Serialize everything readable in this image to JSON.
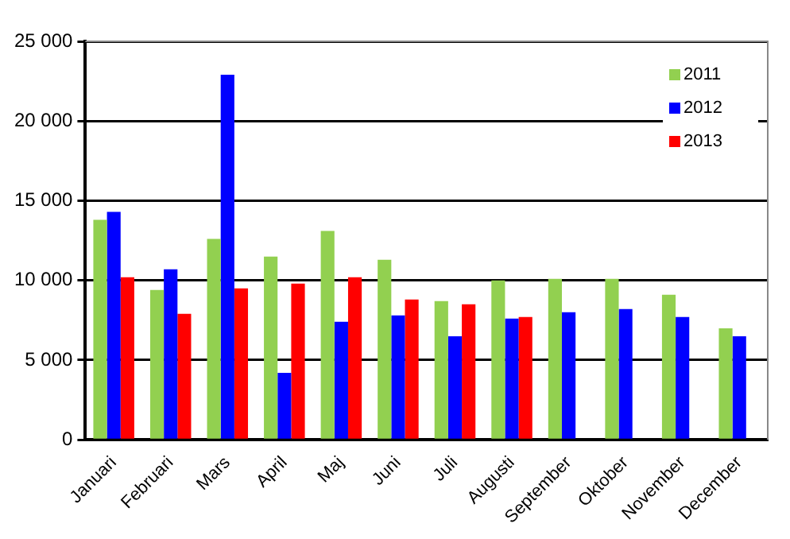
{
  "chart_data": {
    "type": "bar",
    "categories": [
      "Januari",
      "Februari",
      "Mars",
      "April",
      "Maj",
      "Juni",
      "Juli",
      "Augusti",
      "September",
      "Oktober",
      "November",
      "December"
    ],
    "series": [
      {
        "name": "2011",
        "color": "#92d050",
        "values": [
          13800,
          9400,
          12600,
          11500,
          13100,
          11300,
          8700,
          10000,
          10100,
          10100,
          9100,
          7000
        ]
      },
      {
        "name": "2012",
        "color": "#0000ff",
        "values": [
          14300,
          10700,
          22900,
          4200,
          7400,
          7800,
          6500,
          7600,
          8000,
          8200,
          7700,
          6500
        ]
      },
      {
        "name": "2013",
        "color": "#ff0000",
        "values": [
          10200,
          7900,
          9500,
          9800,
          10200,
          8800,
          8500,
          7700,
          null,
          null,
          null,
          null
        ]
      }
    ],
    "ylim": [
      0,
      25000
    ],
    "yticks": [
      {
        "value": 0,
        "label": "0"
      },
      {
        "value": 5000,
        "label": "5 000"
      },
      {
        "value": 10000,
        "label": "10 000"
      },
      {
        "value": 15000,
        "label": "15 000"
      },
      {
        "value": 20000,
        "label": "20 000"
      },
      {
        "value": 25000,
        "label": "25 000"
      }
    ],
    "grid": "y",
    "legend": "top right"
  }
}
